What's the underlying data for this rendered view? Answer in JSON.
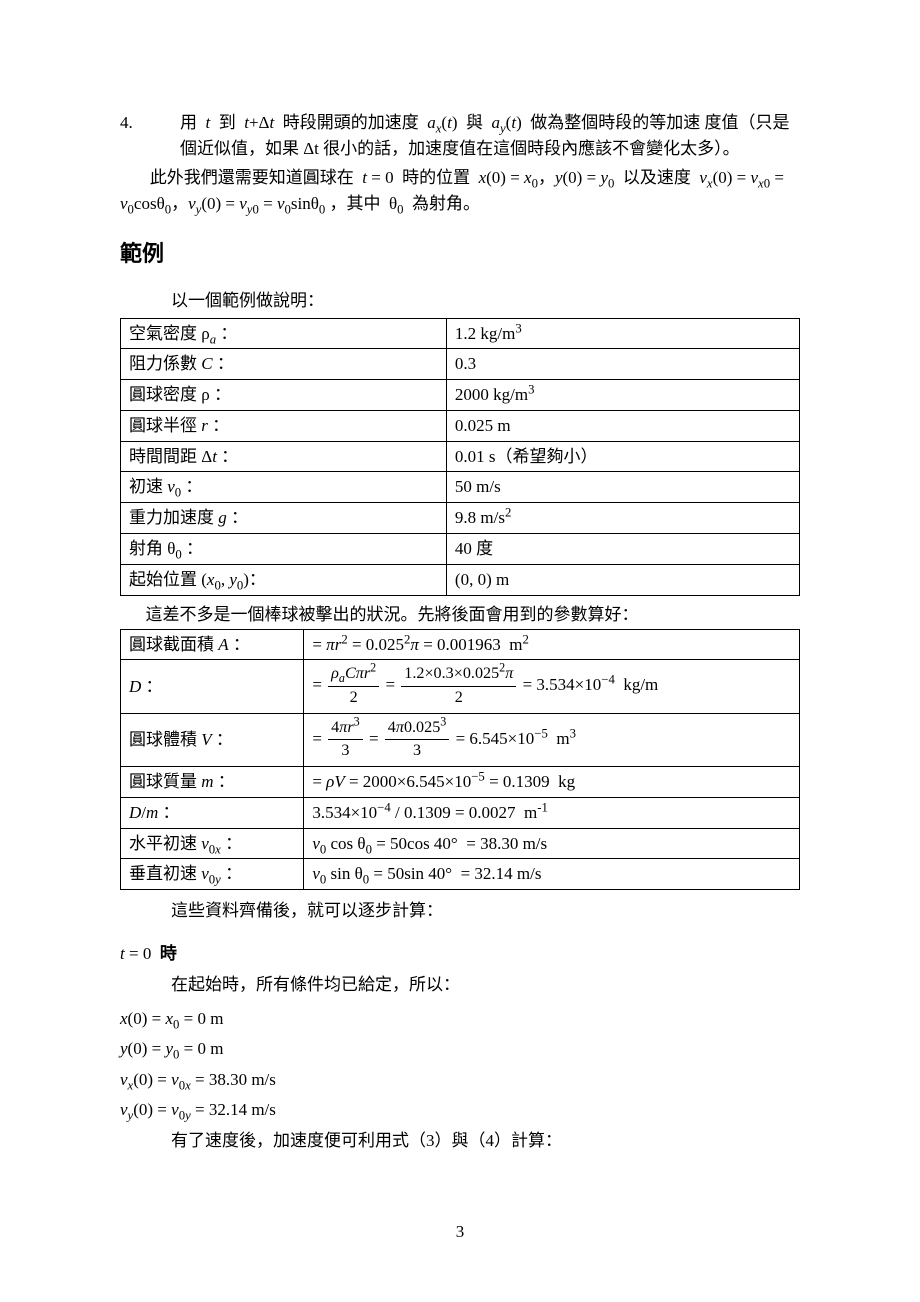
{
  "step4": {
    "num": "4.",
    "line1_a": "用",
    "line1_b": "到",
    "line1_c": "時段開頭的加速度",
    "line1_d": "與",
    "line1_e": "做為整個時段的等加速",
    "line2": "度值（只是個近似值，如果 Δt 很小的話，加速度值在這個時段內應該不會變化太多）。",
    "para2_a": "此外我們還需要知道圓球在",
    "para2_b": "時的位置",
    "para2_c": "以及速度",
    "para3_a": "，其中",
    "para3_b": "為射角。"
  },
  "section_title": "範例",
  "example_intro": "以一個範例做說明：",
  "table1": {
    "rows": [
      {
        "label_html": "空氣密度 ρ<sub><span class='it'>a</span></sub> ：",
        "value_html": "1.2 kg/m<sup>3</sup>"
      },
      {
        "label_html": "阻力係數 <span class='it'>C</span> ：",
        "value_html": "0.3"
      },
      {
        "label_html": "圓球密度 ρ ：",
        "value_html": "2000 kg/m<sup>3</sup>"
      },
      {
        "label_html": "圓球半徑 <span class='it'>r</span> ：",
        "value_html": "0.025 m"
      },
      {
        "label_html": "時間間距 Δ<span class='it'>t</span> ：",
        "value_html": "0.01 s（希望夠小）"
      },
      {
        "label_html": "初速 <span class='it'>v</span><sub>0</sub> ：",
        "value_html": "50 m/s"
      },
      {
        "label_html": "重力加速度 <span class='it'>g</span> ：",
        "value_html": "9.8 m/s<sup>2</sup>"
      },
      {
        "label_html": "射角 θ<sub>0</sub> ：",
        "value_html": "40 度"
      },
      {
        "label_html": "起始位置 (<span class='it'>x</span><sub>0</sub>, <span class='it'>y</span><sub>0</sub>)：",
        "value_html": "(0, 0) m"
      }
    ]
  },
  "mid_note1": "這差不多是一個棒球被擊出的狀況。先將後面會用到的參數算好：",
  "table2": {
    "rows": [
      {
        "label_html": "圓球截面積 <span class='it'>A</span> ：",
        "value_html": "= <span class='it'>πr</span><sup>2</sup> = 0.025<sup>2</sup><span class='it'>π</span> = 0.001963&nbsp;&nbsp;m<sup>2</sup>"
      },
      {
        "label_html": "<span class='it'>D</span> ：",
        "value_html": "= <span class='frac'><span class='fn'><span class='it'>ρ<sub>a</sub>Cπr</span><sup>2</sup></span><span class='fd'>2</span></span> = <span class='frac'><span class='fn'>1.2×0.3×0.025<sup>2</sup><span class='it'>π</span></span><span class='fd'>2</span></span> = 3.534×10<sup>−4</sup>&nbsp;&nbsp;kg/m",
        "tall": true
      },
      {
        "label_html": "圓球體積 <span class='it'>V</span> ：",
        "value_html": "= <span class='frac'><span class='fn'>4<span class='it'>πr</span><sup>3</sup></span><span class='fd'>3</span></span> = <span class='frac'><span class='fn'>4<span class='it'>π</span>0.025<sup>3</sup></span><span class='fd'>3</span></span> = 6.545×10<sup>−5</sup>&nbsp;&nbsp;m<sup>3</sup>",
        "tall": true
      },
      {
        "label_html": "圓球質量 <span class='it'>m</span> ：",
        "value_html": "= <span class='it'>ρV</span> = 2000×6.545×10<sup>−5</sup> = 0.1309&nbsp;&nbsp;kg"
      },
      {
        "label_html": "<span class='it'>D</span>/<span class='it'>m</span> ：",
        "value_html": "3.534×10<sup>−4</sup> / 0.1309 = 0.0027&nbsp;&nbsp;m<sup>-1</sup>"
      },
      {
        "label_html": "水平初速 <span class='it'>v</span><sub>0<span class='it'>x</span></sub> ：",
        "value_html": "<span class='it'>v</span><sub>0</sub> cos θ<sub>0</sub> = 50cos 40°&nbsp;&nbsp;= 38.30 m/s"
      },
      {
        "label_html": "垂直初速 <span class='it'>v</span><sub>0<span class='it'>y</span></sub> ：",
        "value_html": "<span class='it'>v</span><sub>0</sub> sin θ<sub>0</sub> = 50sin 40°&nbsp;&nbsp;= 32.14 m/s"
      }
    ]
  },
  "mid_note2": "這些資料齊備後，就可以逐步計算：",
  "subhead_html": "<span class='it'>t</span> = 0&nbsp;&nbsp;<b>時</b>",
  "t0_intro": "在起始時，所有條件均已給定，所以：",
  "eqs": [
    "<span class='it'>x</span>(0) = <span class='it'>x</span><sub>0</sub> = 0 m",
    "<span class='it'>y</span>(0) = <span class='it'>y</span><sub>0</sub> = 0 m",
    "<span class='it'>v<sub>x</sub></span>(0) = <span class='it'>v</span><sub>0<span class='it'>x</span></sub> = 38.30 m/s",
    "<span class='it'>v<sub>y</sub></span>(0) = <span class='it'>v</span><sub>0<span class='it'>y</span></sub> = 32.14 m/s"
  ],
  "after_eqs": "有了速度後，加速度便可利用式（3）與（4）計算：",
  "page_number": "3"
}
